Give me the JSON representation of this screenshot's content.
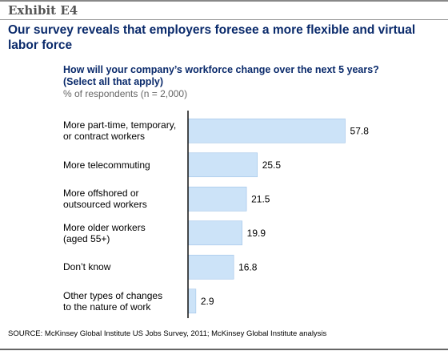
{
  "header": {
    "exhibit": "Exhibit E4",
    "title": "Our survey reveals that employers foresee a more flexible and virtual labor force"
  },
  "question": {
    "text": "How will your company’s workforce change over the next 5 years?",
    "note": "(Select all that apply)",
    "units": "% of respondents (n = 2,000)"
  },
  "chart_data": {
    "type": "bar",
    "orientation": "horizontal",
    "categories": [
      [
        "More part-time, temporary,",
        "or contract workers"
      ],
      [
        "More telecommuting"
      ],
      [
        "More offshored or",
        "outsourced workers"
      ],
      [
        "More older workers",
        "(aged 55+)"
      ],
      [
        "Don’t know"
      ],
      [
        "Other types of changes",
        "to the nature of work"
      ]
    ],
    "values": [
      57.8,
      25.5,
      21.5,
      19.9,
      16.8,
      2.9
    ],
    "value_labels": [
      "57.8",
      "25.5",
      "21.5",
      "19.9",
      "16.8",
      "2.9"
    ],
    "bar_color": "#cce3f8",
    "bar_border": "#9fc3e8",
    "axis_color": "#000000"
  },
  "footer": {
    "source": "SOURCE: McKinsey Global Institute US Jobs Survey, 2011; McKinsey Global Institute analysis"
  }
}
